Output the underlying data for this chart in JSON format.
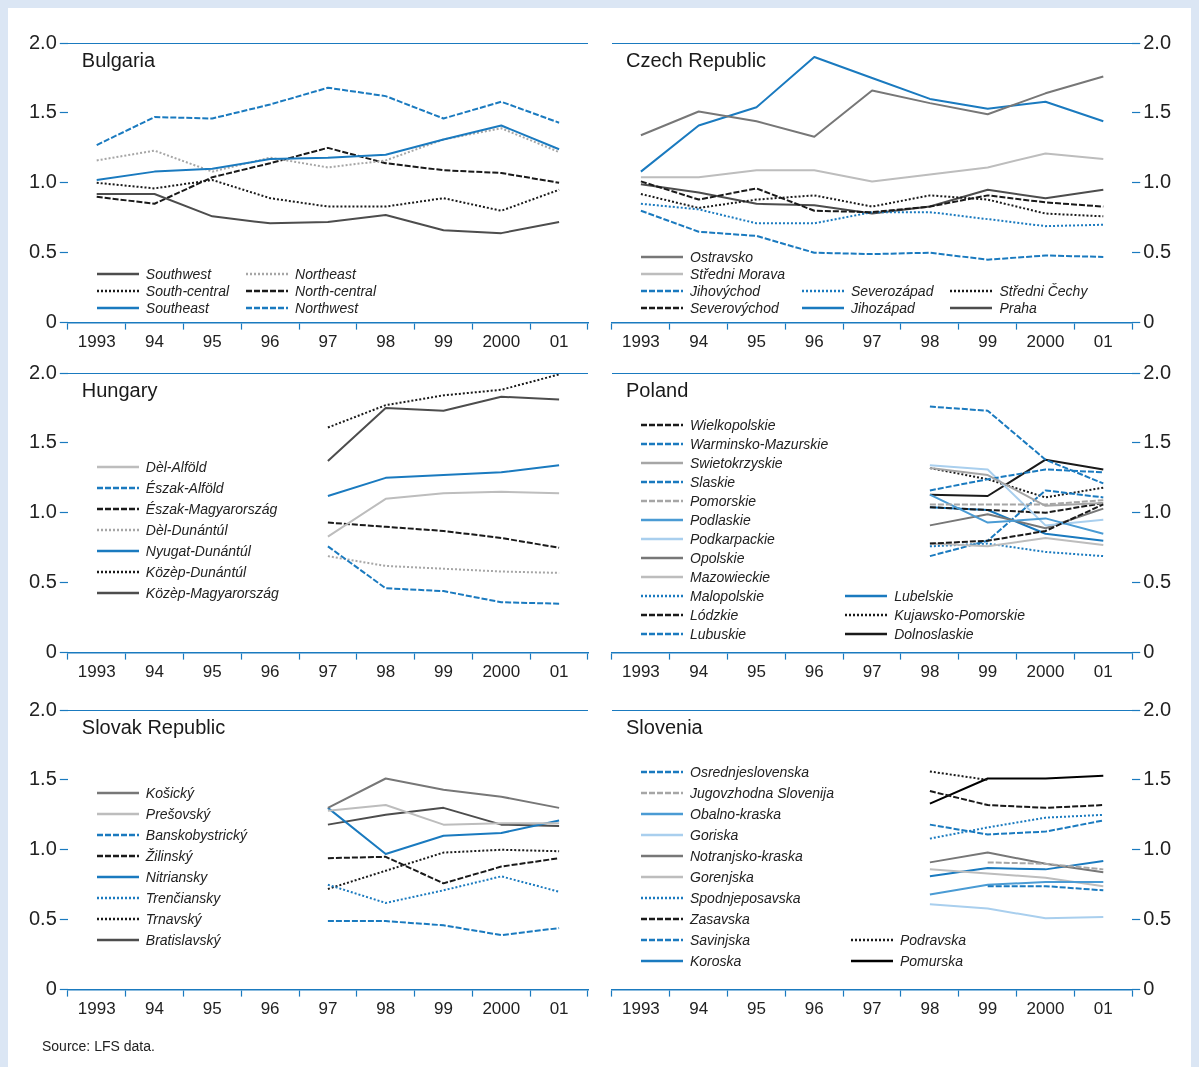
{
  "chart_data": [
    {
      "type": "line",
      "title": "Bulgaria",
      "categories": [
        "1993",
        "94",
        "95",
        "96",
        "97",
        "98",
        "99",
        "2000",
        "01"
      ],
      "ylim": [
        0,
        2
      ],
      "yticks": [
        {
          "value": 0,
          "label": "0"
        },
        {
          "value": 0.5,
          "label": "0.5"
        },
        {
          "value": 1,
          "label": "1.0"
        },
        {
          "value": 1.5,
          "label": "1.5"
        },
        {
          "value": 2,
          "label": "2.0"
        }
      ],
      "legend": "bottom left",
      "series": [
        {
          "name": "Southwest",
          "color": "#4d4d4d",
          "line_style": "solid",
          "values": [
            0.92,
            0.92,
            0.76,
            0.71,
            0.72,
            0.77,
            0.66,
            0.64,
            0.72
          ]
        },
        {
          "name": "South-central",
          "color": "#1a1a1a",
          "line_style": "dotted",
          "values": [
            1.0,
            0.96,
            1.02,
            0.89,
            0.83,
            0.83,
            0.89,
            0.8,
            0.95
          ]
        },
        {
          "name": "Southeast",
          "color": "#1a7abf",
          "line_style": "solid",
          "values": [
            1.02,
            1.08,
            1.1,
            1.17,
            1.18,
            1.2,
            1.31,
            1.41,
            1.24
          ]
        },
        {
          "name": "Northeast",
          "color": "#a6a6a6",
          "line_style": "dotted",
          "values": [
            1.16,
            1.23,
            1.08,
            1.18,
            1.11,
            1.16,
            1.31,
            1.39,
            1.22
          ]
        },
        {
          "name": "North-central",
          "color": "#1a1a1a",
          "line_style": "dashed",
          "values": [
            0.9,
            0.85,
            1.04,
            1.14,
            1.25,
            1.14,
            1.09,
            1.07,
            1.0
          ]
        },
        {
          "name": "Northwest",
          "color": "#1a7abf",
          "line_style": "dashed",
          "values": [
            1.27,
            1.47,
            1.46,
            1.56,
            1.68,
            1.62,
            1.46,
            1.58,
            1.43
          ]
        }
      ]
    },
    {
      "type": "line",
      "title": "Czech Republic",
      "categories": [
        "1993",
        "94",
        "95",
        "96",
        "97",
        "98",
        "99",
        "2000",
        "01"
      ],
      "ylim": [
        0,
        2
      ],
      "yticks": [
        {
          "value": 0,
          "label": "0"
        },
        {
          "value": 0.5,
          "label": "0.5"
        },
        {
          "value": 1,
          "label": "1.0"
        },
        {
          "value": 1.5,
          "label": "1.5"
        },
        {
          "value": 2,
          "label": "2.0"
        }
      ],
      "legend": "bottom left",
      "series": [
        {
          "name": "Ostravsko",
          "color": "#777777",
          "line_style": "solid",
          "values": [
            1.34,
            1.51,
            1.44,
            1.33,
            1.66,
            1.57,
            1.49,
            1.64,
            1.76
          ]
        },
        {
          "name": "Středni Morava",
          "color": "#bdbdbd",
          "line_style": "solid",
          "values": [
            1.04,
            1.04,
            1.09,
            1.09,
            1.01,
            1.06,
            1.11,
            1.21,
            1.17
          ]
        },
        {
          "name": "Jihovýchod",
          "color": "#1a7abf",
          "line_style": "dashed",
          "values": [
            0.8,
            0.65,
            0.62,
            0.5,
            0.49,
            0.5,
            0.45,
            0.48,
            0.47
          ]
        },
        {
          "name": "Severovýchod",
          "color": "#1a1a1a",
          "line_style": "dashed",
          "values": [
            1.01,
            0.88,
            0.96,
            0.8,
            0.79,
            0.83,
            0.91,
            0.86,
            0.83
          ]
        },
        {
          "name": "Severozápad",
          "color": "#1a7abf",
          "line_style": "dotted",
          "values": [
            0.85,
            0.81,
            0.71,
            0.71,
            0.79,
            0.79,
            0.74,
            0.69,
            0.7
          ]
        },
        {
          "name": "Jihozápad",
          "color": "#1a7abf",
          "line_style": "solid",
          "values": [
            1.08,
            1.41,
            1.54,
            1.9,
            1.75,
            1.6,
            1.53,
            1.58,
            1.44
          ]
        },
        {
          "name": "Středni Čechy",
          "color": "#1a1a1a",
          "line_style": "dotted",
          "values": [
            0.92,
            0.82,
            0.88,
            0.91,
            0.83,
            0.91,
            0.88,
            0.78,
            0.76
          ]
        },
        {
          "name": "Praha",
          "color": "#4d4d4d",
          "line_style": "solid",
          "values": [
            0.99,
            0.93,
            0.85,
            0.84,
            0.78,
            0.83,
            0.95,
            0.89,
            0.95
          ]
        }
      ]
    },
    {
      "type": "line",
      "title": "Hungary",
      "categories": [
        "1993",
        "94",
        "95",
        "96",
        "97",
        "98",
        "99",
        "2000",
        "01"
      ],
      "ylim": [
        0,
        2
      ],
      "yticks": [
        {
          "value": 0,
          "label": "0"
        },
        {
          "value": 0.5,
          "label": "0.5"
        },
        {
          "value": 1,
          "label": "1.0"
        },
        {
          "value": 1.5,
          "label": "1.5"
        },
        {
          "value": 2,
          "label": "2.0"
        }
      ],
      "legend": "left",
      "series": [
        {
          "name": "Dèl-Alföld",
          "color": "#bdbdbd",
          "line_style": "solid",
          "values": [
            null,
            null,
            null,
            null,
            0.83,
            1.1,
            1.14,
            1.15,
            1.14
          ]
        },
        {
          "name": "Észak-Alföld",
          "color": "#1a7abf",
          "line_style": "dashed",
          "values": [
            null,
            null,
            null,
            null,
            0.76,
            0.46,
            0.44,
            0.36,
            0.35
          ]
        },
        {
          "name": "Észak-Magyarország",
          "color": "#1a1a1a",
          "line_style": "dashed",
          "values": [
            null,
            null,
            null,
            null,
            0.93,
            0.9,
            0.87,
            0.82,
            0.75
          ]
        },
        {
          "name": "Dèl-Dunántúl",
          "color": "#a6a6a6",
          "line_style": "dotted",
          "values": [
            null,
            null,
            null,
            null,
            0.69,
            0.62,
            0.6,
            0.58,
            0.57
          ]
        },
        {
          "name": "Nyugat-Dunántúl",
          "color": "#1a7abf",
          "line_style": "solid",
          "values": [
            null,
            null,
            null,
            null,
            1.12,
            1.25,
            1.27,
            1.29,
            1.34
          ]
        },
        {
          "name": "Közèp-Dunántúl",
          "color": "#1a1a1a",
          "line_style": "dotted",
          "values": [
            null,
            null,
            null,
            null,
            1.61,
            1.77,
            1.84,
            1.88,
            1.99
          ]
        },
        {
          "name": "Közèp-Magyarország",
          "color": "#4d4d4d",
          "line_style": "solid",
          "values": [
            null,
            null,
            null,
            null,
            1.37,
            1.75,
            1.73,
            1.83,
            1.81
          ]
        }
      ]
    },
    {
      "type": "line",
      "title": "Poland",
      "categories": [
        "1993",
        "94",
        "95",
        "96",
        "97",
        "98",
        "99",
        "2000",
        "01"
      ],
      "ylim": [
        0,
        2
      ],
      "yticks": [
        {
          "value": 0,
          "label": "0"
        },
        {
          "value": 0.5,
          "label": "0.5"
        },
        {
          "value": 1,
          "label": "1.0"
        },
        {
          "value": 1.5,
          "label": "1.5"
        },
        {
          "value": 2,
          "label": "2.0"
        }
      ],
      "legend": "left",
      "series": [
        {
          "name": "Wielkopolskie",
          "color": "#1a1a1a",
          "line_style": "dashed",
          "values": [
            null,
            null,
            null,
            null,
            null,
            0.78,
            0.8,
            0.87,
            1.06
          ]
        },
        {
          "name": "Warminsko-Mazurskie",
          "color": "#1a7abf",
          "line_style": "dashed",
          "values": [
            null,
            null,
            null,
            null,
            null,
            1.76,
            1.73,
            1.38,
            1.21
          ]
        },
        {
          "name": "Swietokrzyskie",
          "color": "#a6a6a6",
          "line_style": "solid",
          "values": [
            null,
            null,
            null,
            null,
            null,
            1.32,
            1.27,
            1.05,
            1.07
          ]
        },
        {
          "name": "Slaskie",
          "color": "#1a7abf",
          "line_style": "dashed",
          "values": [
            null,
            null,
            null,
            null,
            null,
            1.16,
            1.24,
            1.31,
            1.29
          ]
        },
        {
          "name": "Pomorskie",
          "color": "#a6a6a6",
          "line_style": "dashed",
          "values": [
            null,
            null,
            null,
            null,
            null,
            1.06,
            1.06,
            1.06,
            1.09
          ]
        },
        {
          "name": "Podlaskie",
          "color": "#4a9bd4",
          "line_style": "solid",
          "values": [
            null,
            null,
            null,
            null,
            null,
            1.13,
            0.93,
            0.96,
            0.85
          ]
        },
        {
          "name": "Podkarpackie",
          "color": "#a9cfee",
          "line_style": "solid",
          "values": [
            null,
            null,
            null,
            null,
            null,
            1.34,
            1.31,
            0.91,
            0.95
          ]
        },
        {
          "name": "Opolskie",
          "color": "#777777",
          "line_style": "solid",
          "values": [
            null,
            null,
            null,
            null,
            null,
            0.91,
            0.99,
            0.89,
            1.03
          ]
        },
        {
          "name": "Mazowieckie",
          "color": "#bdbdbd",
          "line_style": "solid",
          "values": [
            null,
            null,
            null,
            null,
            null,
            0.78,
            0.76,
            0.82,
            0.77
          ]
        },
        {
          "name": "Malopolskie",
          "color": "#1a7abf",
          "line_style": "dotted",
          "values": [
            null,
            null,
            null,
            null,
            null,
            0.76,
            0.78,
            0.72,
            0.69
          ]
        },
        {
          "name": "Lódzkie",
          "color": "#1a1a1a",
          "line_style": "dashed",
          "values": [
            null,
            null,
            null,
            null,
            null,
            1.04,
            1.02,
            1.0,
            1.07
          ]
        },
        {
          "name": "Lubuskie",
          "color": "#1a7abf",
          "line_style": "dashed",
          "values": [
            null,
            null,
            null,
            null,
            null,
            0.69,
            0.8,
            1.16,
            1.11
          ]
        },
        {
          "name": "Lubelskie",
          "color": "#1a7abf",
          "line_style": "solid",
          "values": [
            null,
            null,
            null,
            null,
            null,
            1.04,
            1.02,
            0.85,
            0.8
          ]
        },
        {
          "name": "Kujawsko-Pomorskie",
          "color": "#1a1a1a",
          "line_style": "dotted",
          "values": [
            null,
            null,
            null,
            null,
            null,
            1.32,
            1.24,
            1.11,
            1.18
          ]
        },
        {
          "name": "Dolnoslaskie",
          "color": "#1a1a1a",
          "line_style": "solid",
          "values": [
            null,
            null,
            null,
            null,
            null,
            1.13,
            1.12,
            1.38,
            1.31
          ]
        }
      ]
    },
    {
      "type": "line",
      "title": "Slovak Republic",
      "categories": [
        "1993",
        "94",
        "95",
        "96",
        "97",
        "98",
        "99",
        "2000",
        "01"
      ],
      "ylim": [
        0,
        2
      ],
      "yticks": [
        {
          "value": 0,
          "label": "0"
        },
        {
          "value": 0.5,
          "label": "0.5"
        },
        {
          "value": 1,
          "label": "1.0"
        },
        {
          "value": 1.5,
          "label": "1.5"
        },
        {
          "value": 2,
          "label": "2.0"
        }
      ],
      "legend": "left",
      "annotations": [
        "Source: LFS data."
      ],
      "series": [
        {
          "name": "Košický",
          "color": "#777777",
          "line_style": "solid",
          "values": [
            null,
            null,
            null,
            null,
            1.3,
            1.51,
            1.43,
            1.38,
            1.3
          ]
        },
        {
          "name": "Prešovský",
          "color": "#bdbdbd",
          "line_style": "solid",
          "values": [
            null,
            null,
            null,
            null,
            1.28,
            1.32,
            1.18,
            1.19,
            1.19
          ]
        },
        {
          "name": "Banskobystrický",
          "color": "#1a7abf",
          "line_style": "dashed",
          "values": [
            null,
            null,
            null,
            null,
            0.49,
            0.49,
            0.46,
            0.39,
            0.44
          ]
        },
        {
          "name": "Žilinský",
          "color": "#1a1a1a",
          "line_style": "dashed",
          "values": [
            null,
            null,
            null,
            null,
            0.94,
            0.95,
            0.76,
            0.88,
            0.94
          ]
        },
        {
          "name": "Nitriansky",
          "color": "#1a7abf",
          "line_style": "solid",
          "values": [
            null,
            null,
            null,
            null,
            1.3,
            0.97,
            1.1,
            1.12,
            1.21
          ]
        },
        {
          "name": "Trenčiansky",
          "color": "#1a7abf",
          "line_style": "dotted",
          "values": [
            null,
            null,
            null,
            null,
            0.75,
            0.62,
            0.71,
            0.81,
            0.7
          ]
        },
        {
          "name": "Trnavský",
          "color": "#1a1a1a",
          "line_style": "dotted",
          "values": [
            null,
            null,
            null,
            null,
            0.72,
            0.85,
            0.98,
            1.0,
            0.99
          ]
        },
        {
          "name": "Bratislavský",
          "color": "#4d4d4d",
          "line_style": "solid",
          "values": [
            null,
            null,
            null,
            null,
            1.18,
            1.25,
            1.3,
            1.18,
            1.17
          ]
        }
      ]
    },
    {
      "type": "line",
      "title": "Slovenia",
      "categories": [
        "1993",
        "94",
        "95",
        "96",
        "97",
        "98",
        "99",
        "2000",
        "01"
      ],
      "ylim": [
        0,
        2
      ],
      "yticks": [
        {
          "value": 0,
          "label": "0"
        },
        {
          "value": 0.5,
          "label": "0.5"
        },
        {
          "value": 1,
          "label": "1.0"
        },
        {
          "value": 1.5,
          "label": "1.5"
        },
        {
          "value": 2,
          "label": "2.0"
        }
      ],
      "legend": "left",
      "series": [
        {
          "name": "Osrednjeslovenska",
          "color": "#1a7abf",
          "line_style": "dashed",
          "values": [
            null,
            null,
            null,
            null,
            null,
            null,
            0.74,
            0.74,
            0.71
          ]
        },
        {
          "name": "Jugovzhodna Slovenija",
          "color": "#a6a6a6",
          "line_style": "dashed",
          "values": [
            null,
            null,
            null,
            null,
            null,
            null,
            0.91,
            0.9,
            0.86
          ]
        },
        {
          "name": "Obalno-kraska",
          "color": "#4a9bd4",
          "line_style": "solid",
          "values": [
            null,
            null,
            null,
            null,
            null,
            0.68,
            0.75,
            0.77,
            0.77
          ]
        },
        {
          "name": "Goriska",
          "color": "#a9cfee",
          "line_style": "solid",
          "values": [
            null,
            null,
            null,
            null,
            null,
            0.61,
            0.58,
            0.51,
            0.52
          ]
        },
        {
          "name": "Notranjsko-kraska",
          "color": "#777777",
          "line_style": "solid",
          "values": [
            null,
            null,
            null,
            null,
            null,
            0.91,
            0.98,
            0.9,
            0.84
          ]
        },
        {
          "name": "Gorenjska",
          "color": "#bdbdbd",
          "line_style": "solid",
          "values": [
            null,
            null,
            null,
            null,
            null,
            0.86,
            0.83,
            0.8,
            0.74
          ]
        },
        {
          "name": "Spodnjeposavska",
          "color": "#1a7abf",
          "line_style": "dotted",
          "values": [
            null,
            null,
            null,
            null,
            null,
            1.08,
            1.16,
            1.23,
            1.25
          ]
        },
        {
          "name": "Zasavska",
          "color": "#1a1a1a",
          "line_style": "dashed",
          "values": [
            null,
            null,
            null,
            null,
            null,
            1.42,
            1.32,
            1.3,
            1.32
          ]
        },
        {
          "name": "Savinjska",
          "color": "#1a7abf",
          "line_style": "dashed",
          "values": [
            null,
            null,
            null,
            null,
            null,
            1.18,
            1.11,
            1.13,
            1.21
          ]
        },
        {
          "name": "Koroska",
          "color": "#1a7abf",
          "line_style": "solid",
          "values": [
            null,
            null,
            null,
            null,
            null,
            0.81,
            0.87,
            0.86,
            0.92
          ]
        },
        {
          "name": "Podravska",
          "color": "#1a1a1a",
          "line_style": "dotted",
          "values": [
            null,
            null,
            null,
            null,
            null,
            1.56,
            1.5,
            null,
            null
          ]
        },
        {
          "name": "Pomurska",
          "color": "#000000",
          "line_style": "solid",
          "values": [
            null,
            null,
            null,
            null,
            null,
            1.33,
            1.51,
            1.51,
            1.53
          ]
        }
      ]
    }
  ]
}
